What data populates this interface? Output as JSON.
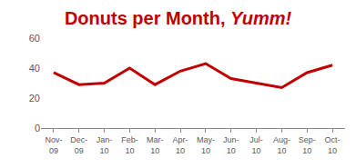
{
  "chart_data": {
    "type": "line",
    "title": "Donuts per Month, Yumm!",
    "categories": [
      "Nov-09",
      "Dec-09",
      "Jan-10",
      "Feb-10",
      "Mar-10",
      "Apr-10",
      "May-10",
      "Jun-10",
      "Jul-10",
      "Aug-10",
      "Sep-10",
      "Oct-10"
    ],
    "values": [
      37,
      29,
      30,
      40,
      29,
      38,
      43,
      33,
      30,
      27,
      37,
      42
    ],
    "color": "#c00000",
    "ylim": [
      0,
      60
    ],
    "yticks": [
      0,
      20,
      40,
      60
    ],
    "grid": false
  }
}
